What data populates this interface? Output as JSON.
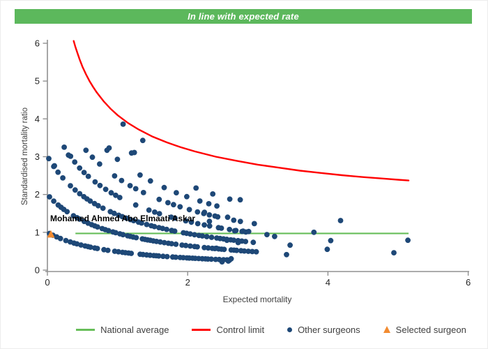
{
  "banner": {
    "title": "In line with expected rate"
  },
  "colors": {
    "banner_green": "#5CB85C",
    "national_average_green": "#67BE59",
    "control_limit_red": "#FF0000",
    "surgeon_navy": "#1E4877",
    "selected_orange": "#F28B30",
    "axis_gray": "#909090",
    "tick_text": "#262626",
    "label_text": "#3F3F3F"
  },
  "legend": {
    "items": [
      {
        "label": "National average",
        "type": "line",
        "color": "#67BE59"
      },
      {
        "label": "Control limit",
        "type": "line",
        "color": "#FF0000"
      },
      {
        "label": "Other surgeons",
        "type": "dot",
        "color": "#1E4877"
      },
      {
        "label": "Selected surgeon",
        "type": "triangle",
        "color": "#F28B30"
      }
    ]
  },
  "chart_data": {
    "type": "scatter",
    "title": "In line with expected rate",
    "xlabel": "Expected mortality",
    "ylabel": "Standardised mortality ratio",
    "xlim": [
      0,
      6
    ],
    "ylim": [
      0,
      6
    ],
    "x_ticks": [
      0,
      2,
      4,
      6
    ],
    "y_ticks": [
      0,
      1,
      2,
      3,
      4,
      5,
      6
    ],
    "grid": false,
    "legend_position": "bottom",
    "national_average": {
      "y": 0.97,
      "x_start": 0.4,
      "x_end": 5.15
    },
    "control_limit": {
      "points": [
        [
          0.375,
          6.06
        ],
        [
          0.4,
          5.9
        ],
        [
          0.43,
          5.73
        ],
        [
          0.46,
          5.57
        ],
        [
          0.5,
          5.38
        ],
        [
          0.55,
          5.18
        ],
        [
          0.6,
          5.0
        ],
        [
          0.65,
          4.85
        ],
        [
          0.7,
          4.71
        ],
        [
          0.8,
          4.47
        ],
        [
          0.9,
          4.27
        ],
        [
          1.0,
          4.1
        ],
        [
          1.15,
          3.89
        ],
        [
          1.3,
          3.72
        ],
        [
          1.5,
          3.53
        ],
        [
          1.7,
          3.38
        ],
        [
          1.9,
          3.25
        ],
        [
          2.1,
          3.14
        ],
        [
          2.4,
          3.0
        ],
        [
          2.7,
          2.89
        ],
        [
          3.0,
          2.79
        ],
        [
          3.3,
          2.71
        ],
        [
          3.6,
          2.63
        ],
        [
          3.9,
          2.57
        ],
        [
          4.2,
          2.51
        ],
        [
          4.5,
          2.46
        ],
        [
          4.8,
          2.42
        ],
        [
          5.0,
          2.39
        ],
        [
          5.15,
          2.37
        ]
      ]
    },
    "selected_surgeon": {
      "x": 0.05,
      "y": 0.95,
      "label": "Mohamed Ahmed Abo Elmaati Askar"
    },
    "other_surgeons": {
      "model": "smr = deaths / (1 + 1.05 * expected)",
      "bands": [
        {
          "deaths": 1,
          "x_start": 0.03,
          "x_end": 2.62,
          "step": 0.048,
          "gap": 0.08
        },
        {
          "deaths": 2,
          "x_start": 0.03,
          "x_end": 3.05,
          "step": 0.052,
          "gap": 0.1
        },
        {
          "deaths": 3,
          "x_start": 0.09,
          "x_end": 2.95,
          "step": 0.06,
          "gap": 0.16
        },
        {
          "deaths": 4,
          "x_start": 0.3,
          "x_end": 2.92,
          "step": 0.075,
          "gap": 0.22
        },
        {
          "deaths": 5,
          "x_start": 0.55,
          "x_end": 2.8,
          "step": 0.105,
          "gap": 0.26
        },
        {
          "deaths": 6,
          "x_start": 0.85,
          "x_end": 2.62,
          "step": 0.155,
          "gap": 0.28
        },
        {
          "deaths": 7,
          "x_start": 1.2,
          "x_end": 2.78,
          "step": 0.25,
          "gap": 0.25
        }
      ],
      "points": [
        [
          0.02,
          2.95
        ],
        [
          0.1,
          2.76
        ],
        [
          0.24,
          3.25
        ],
        [
          0.33,
          3.01
        ],
        [
          0.39,
          2.86
        ],
        [
          0.88,
          3.23
        ],
        [
          1.08,
          3.86
        ],
        [
          1.24,
          3.11
        ],
        [
          1.36,
          3.43
        ],
        [
          2.24,
          1.53
        ],
        [
          2.31,
          1.29
        ],
        [
          2.39,
          1.43
        ],
        [
          2.41,
          0.58
        ],
        [
          2.48,
          1.11
        ],
        [
          2.49,
          0.22
        ],
        [
          2.56,
          0.79
        ],
        [
          2.57,
          1.4
        ],
        [
          2.58,
          0.24
        ],
        [
          2.62,
          0.3
        ],
        [
          2.67,
          1.04
        ],
        [
          2.72,
          0.73
        ],
        [
          2.75,
          1.86
        ],
        [
          2.79,
          1.03
        ],
        [
          2.87,
          1.02
        ],
        [
          2.95,
          1.23
        ],
        [
          3.13,
          0.94
        ],
        [
          3.24,
          0.89
        ],
        [
          3.41,
          0.41
        ],
        [
          3.46,
          0.66
        ],
        [
          3.8,
          1.0
        ],
        [
          3.99,
          0.55
        ],
        [
          4.04,
          0.78
        ],
        [
          4.18,
          1.31
        ],
        [
          4.94,
          0.46
        ],
        [
          5.14,
          0.79
        ]
      ]
    }
  }
}
